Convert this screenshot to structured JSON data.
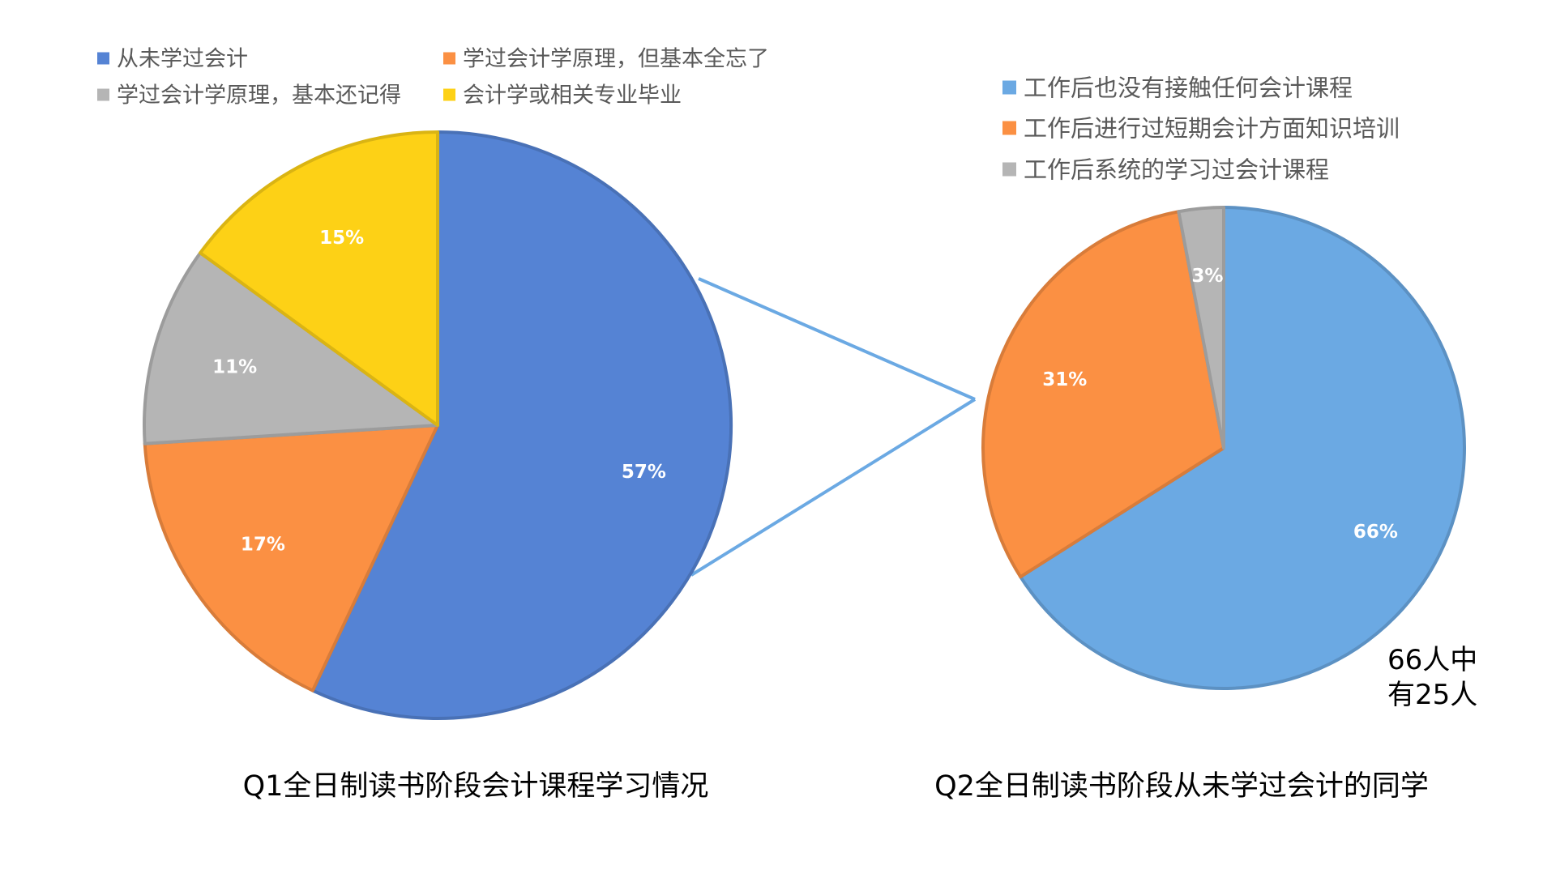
{
  "chart_data": [
    {
      "type": "pie",
      "title": "Q1全日制读书阶段会计课程学习情况",
      "legend_position": "top",
      "series": [
        {
          "name": "从未学过会计",
          "value": 57,
          "label": "57%",
          "color": "#5583D4"
        },
        {
          "name": "学过会计学原理，但基本全忘了",
          "value": 17,
          "label": "17%",
          "color": "#FB9043"
        },
        {
          "name": "学过会计学原理，基本还记得",
          "value": 11,
          "label": "11%",
          "color": "#B5B5B5"
        },
        {
          "name": "会计学或相关专业毕业",
          "value": 15,
          "label": "15%",
          "color": "#FDD116"
        }
      ]
    },
    {
      "type": "pie",
      "title": "Q2全日制读书阶段从未学过会计的同学",
      "legend_position": "top",
      "annotation": [
        "66人中",
        "有25人"
      ],
      "series": [
        {
          "name": "工作后也没有接触任何会计课程",
          "value": 66,
          "label": "66%",
          "color": "#6BA9E3"
        },
        {
          "name": "工作后进行过短期会计方面知识培训",
          "value": 31,
          "label": "31%",
          "color": "#FB9043"
        },
        {
          "name": "工作后系统的学习过会计课程",
          "value": 3,
          "label": "3%",
          "color": "#B5B5B5"
        }
      ]
    }
  ],
  "colors": {
    "connector": "#6BA9E3",
    "legend_text": "#595959",
    "title_text": "#000000",
    "data_label": "#ffffff"
  }
}
